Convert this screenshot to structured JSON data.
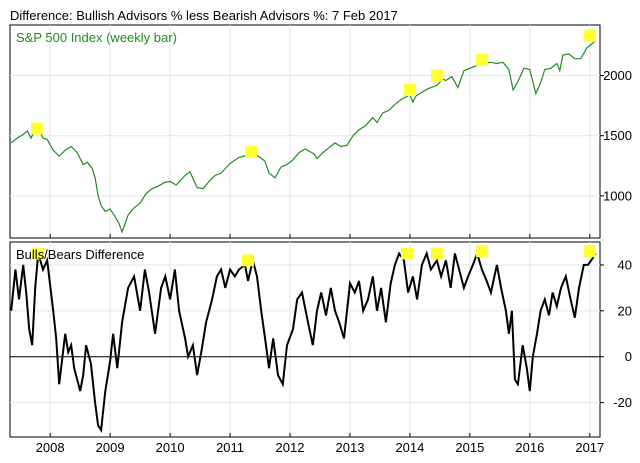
{
  "chart_data": {
    "title": "Difference: Bullish Advisors % less Bearish Advisors %: 7 Feb 2017",
    "colors": {
      "price_line": "#228b22",
      "diff_line": "#000000",
      "highlight": "#ffff33",
      "grid": "#e6e6e6",
      "frame": "#000000"
    },
    "x_ticks": [
      "2008",
      "2009",
      "2010",
      "2011",
      "2012",
      "2013",
      "2014",
      "2015",
      "2016",
      "2017"
    ],
    "xlim": [
      2007.33,
      2017.17
    ],
    "panels": [
      {
        "type": "line",
        "label": "S&P 500 Index (weekly bar)",
        "y_ticks": [
          "2000",
          "1500",
          "1000"
        ],
        "ylim": [
          650,
          2420
        ],
        "series": {
          "x": [
            2007.35,
            2007.45,
            2007.55,
            2007.62,
            2007.68,
            2007.75,
            2007.8,
            2007.88,
            2007.95,
            2008.05,
            2008.15,
            2008.25,
            2008.35,
            2008.45,
            2008.55,
            2008.62,
            2008.7,
            2008.75,
            2008.8,
            2008.85,
            2008.92,
            2009.0,
            2009.08,
            2009.15,
            2009.2,
            2009.3,
            2009.4,
            2009.5,
            2009.6,
            2009.7,
            2009.8,
            2009.9,
            2010.0,
            2010.1,
            2010.25,
            2010.33,
            2010.45,
            2010.55,
            2010.65,
            2010.75,
            2010.85,
            2011.0,
            2011.15,
            2011.3,
            2011.4,
            2011.5,
            2011.58,
            2011.65,
            2011.75,
            2011.85,
            2011.95,
            2012.05,
            2012.15,
            2012.25,
            2012.4,
            2012.45,
            2012.55,
            2012.65,
            2012.75,
            2012.85,
            2012.95,
            2013.05,
            2013.15,
            2013.25,
            2013.38,
            2013.45,
            2013.55,
            2013.65,
            2013.75,
            2013.85,
            2014.0,
            2014.05,
            2014.1,
            2014.2,
            2014.3,
            2014.45,
            2014.55,
            2014.6,
            2014.7,
            2014.8,
            2014.9,
            2015.0,
            2015.1,
            2015.2,
            2015.35,
            2015.45,
            2015.55,
            2015.65,
            2015.72,
            2015.8,
            2015.9,
            2016.0,
            2016.1,
            2016.18,
            2016.25,
            2016.35,
            2016.45,
            2016.5,
            2016.55,
            2016.65,
            2016.75,
            2016.85,
            2016.95,
            2017.05,
            2017.1
          ],
          "y": [
            1440,
            1480,
            1510,
            1540,
            1480,
            1550,
            1560,
            1480,
            1470,
            1380,
            1330,
            1380,
            1410,
            1360,
            1260,
            1280,
            1230,
            1150,
            1000,
            920,
            870,
            890,
            830,
            770,
            700,
            840,
            900,
            940,
            1020,
            1060,
            1080,
            1110,
            1120,
            1090,
            1170,
            1200,
            1070,
            1060,
            1120,
            1170,
            1190,
            1270,
            1320,
            1340,
            1350,
            1320,
            1290,
            1190,
            1150,
            1240,
            1260,
            1300,
            1360,
            1390,
            1350,
            1310,
            1360,
            1400,
            1440,
            1410,
            1420,
            1500,
            1550,
            1580,
            1650,
            1610,
            1690,
            1710,
            1760,
            1800,
            1840,
            1780,
            1830,
            1860,
            1890,
            1920,
            1970,
            1960,
            1990,
            1900,
            2040,
            2060,
            2080,
            2100,
            2110,
            2100,
            2110,
            2050,
            1880,
            1950,
            2060,
            2050,
            1850,
            1940,
            2050,
            2060,
            2100,
            2040,
            2170,
            2180,
            2140,
            2140,
            2230,
            2270,
            2290
          ]
        },
        "highlights": [
          {
            "x": 2007.78,
            "y": 1560
          },
          {
            "x": 2011.35,
            "y": 1365
          },
          {
            "x": 2014.0,
            "y": 1880
          },
          {
            "x": 2014.45,
            "y": 2000
          },
          {
            "x": 2015.2,
            "y": 2130
          },
          {
            "x": 2017.0,
            "y": 2330
          }
        ]
      },
      {
        "type": "line",
        "label": "Bulls/Bears Difference",
        "y_ticks": [
          "40",
          "20",
          "0",
          "-20"
        ],
        "ylim": [
          -35,
          50
        ],
        "zero_line": true,
        "series": {
          "x": [
            2007.35,
            2007.42,
            2007.48,
            2007.55,
            2007.6,
            2007.65,
            2007.7,
            2007.75,
            2007.8,
            2007.88,
            2007.95,
            2008.05,
            2008.1,
            2008.15,
            2008.25,
            2008.3,
            2008.35,
            2008.4,
            2008.5,
            2008.55,
            2008.6,
            2008.68,
            2008.75,
            2008.8,
            2008.85,
            2008.92,
            2009.0,
            2009.05,
            2009.12,
            2009.2,
            2009.3,
            2009.4,
            2009.5,
            2009.58,
            2009.65,
            2009.75,
            2009.85,
            2009.92,
            2010.0,
            2010.08,
            2010.15,
            2010.25,
            2010.3,
            2010.38,
            2010.45,
            2010.52,
            2010.6,
            2010.7,
            2010.78,
            2010.85,
            2010.92,
            2011.0,
            2011.08,
            2011.15,
            2011.25,
            2011.3,
            2011.38,
            2011.45,
            2011.52,
            2011.6,
            2011.65,
            2011.72,
            2011.8,
            2011.88,
            2011.95,
            2012.05,
            2012.12,
            2012.2,
            2012.3,
            2012.38,
            2012.45,
            2012.52,
            2012.6,
            2012.68,
            2012.75,
            2012.82,
            2012.9,
            2013.0,
            2013.08,
            2013.15,
            2013.22,
            2013.3,
            2013.38,
            2013.45,
            2013.52,
            2013.6,
            2013.68,
            2013.75,
            2013.82,
            2013.9,
            2013.97,
            2014.05,
            2014.12,
            2014.2,
            2014.28,
            2014.35,
            2014.45,
            2014.52,
            2014.6,
            2014.68,
            2014.75,
            2014.82,
            2014.9,
            2014.97,
            2015.05,
            2015.12,
            2015.2,
            2015.28,
            2015.35,
            2015.45,
            2015.52,
            2015.6,
            2015.65,
            2015.7,
            2015.75,
            2015.8,
            2015.88,
            2015.95,
            2016.0,
            2016.05,
            2016.12,
            2016.18,
            2016.25,
            2016.32,
            2016.38,
            2016.45,
            2016.52,
            2016.6,
            2016.68,
            2016.75,
            2016.82,
            2016.9,
            2016.97,
            2017.05,
            2017.1
          ],
          "y": [
            20,
            38,
            25,
            40,
            28,
            12,
            5,
            30,
            45,
            38,
            42,
            20,
            8,
            -12,
            10,
            2,
            5,
            -5,
            -15,
            -8,
            5,
            -3,
            -20,
            -30,
            -32,
            -15,
            -2,
            10,
            -5,
            15,
            30,
            35,
            20,
            38,
            28,
            10,
            30,
            35,
            25,
            38,
            20,
            8,
            0,
            5,
            -8,
            2,
            15,
            25,
            35,
            38,
            30,
            38,
            35,
            38,
            40,
            33,
            42,
            35,
            20,
            5,
            -5,
            8,
            -8,
            -12,
            5,
            12,
            25,
            28,
            15,
            5,
            20,
            28,
            18,
            30,
            20,
            15,
            8,
            32,
            28,
            33,
            20,
            25,
            35,
            20,
            30,
            15,
            32,
            40,
            45,
            42,
            28,
            35,
            25,
            40,
            45,
            38,
            42,
            35,
            42,
            30,
            45,
            38,
            30,
            35,
            40,
            45,
            38,
            33,
            28,
            40,
            30,
            20,
            10,
            20,
            -10,
            -12,
            5,
            -5,
            -15,
            0,
            10,
            20,
            25,
            18,
            28,
            22,
            30,
            35,
            25,
            17,
            30,
            40,
            40,
            43,
            45
          ]
        },
        "highlights": [
          {
            "x": 2007.8,
            "y": 45
          },
          {
            "x": 2011.3,
            "y": 42
          },
          {
            "x": 2013.95,
            "y": 45
          },
          {
            "x": 2014.45,
            "y": 45
          },
          {
            "x": 2015.2,
            "y": 46
          },
          {
            "x": 2017.0,
            "y": 46
          }
        ]
      }
    ]
  }
}
